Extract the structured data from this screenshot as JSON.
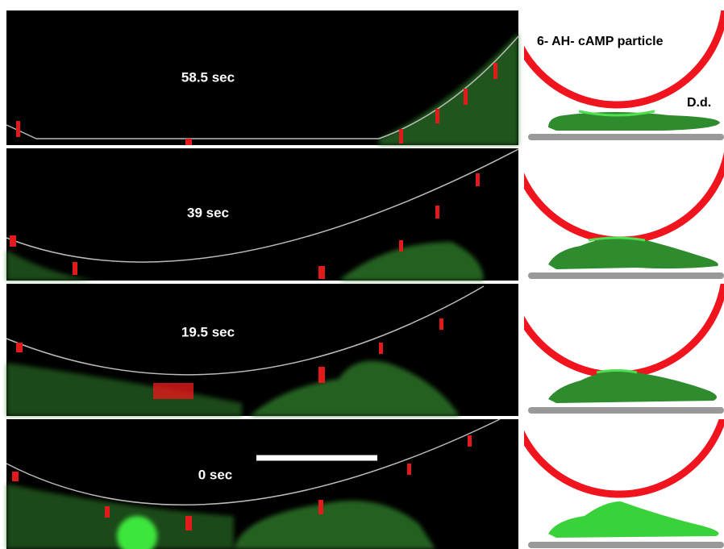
{
  "panels": [
    {
      "label": "58.5 sec"
    },
    {
      "label": "39 sec"
    },
    {
      "label": "19.5 sec"
    },
    {
      "label": "0 sec"
    }
  ],
  "annotations": {
    "particle": "6- AH- cAMP particle",
    "cell": "D.d."
  }
}
